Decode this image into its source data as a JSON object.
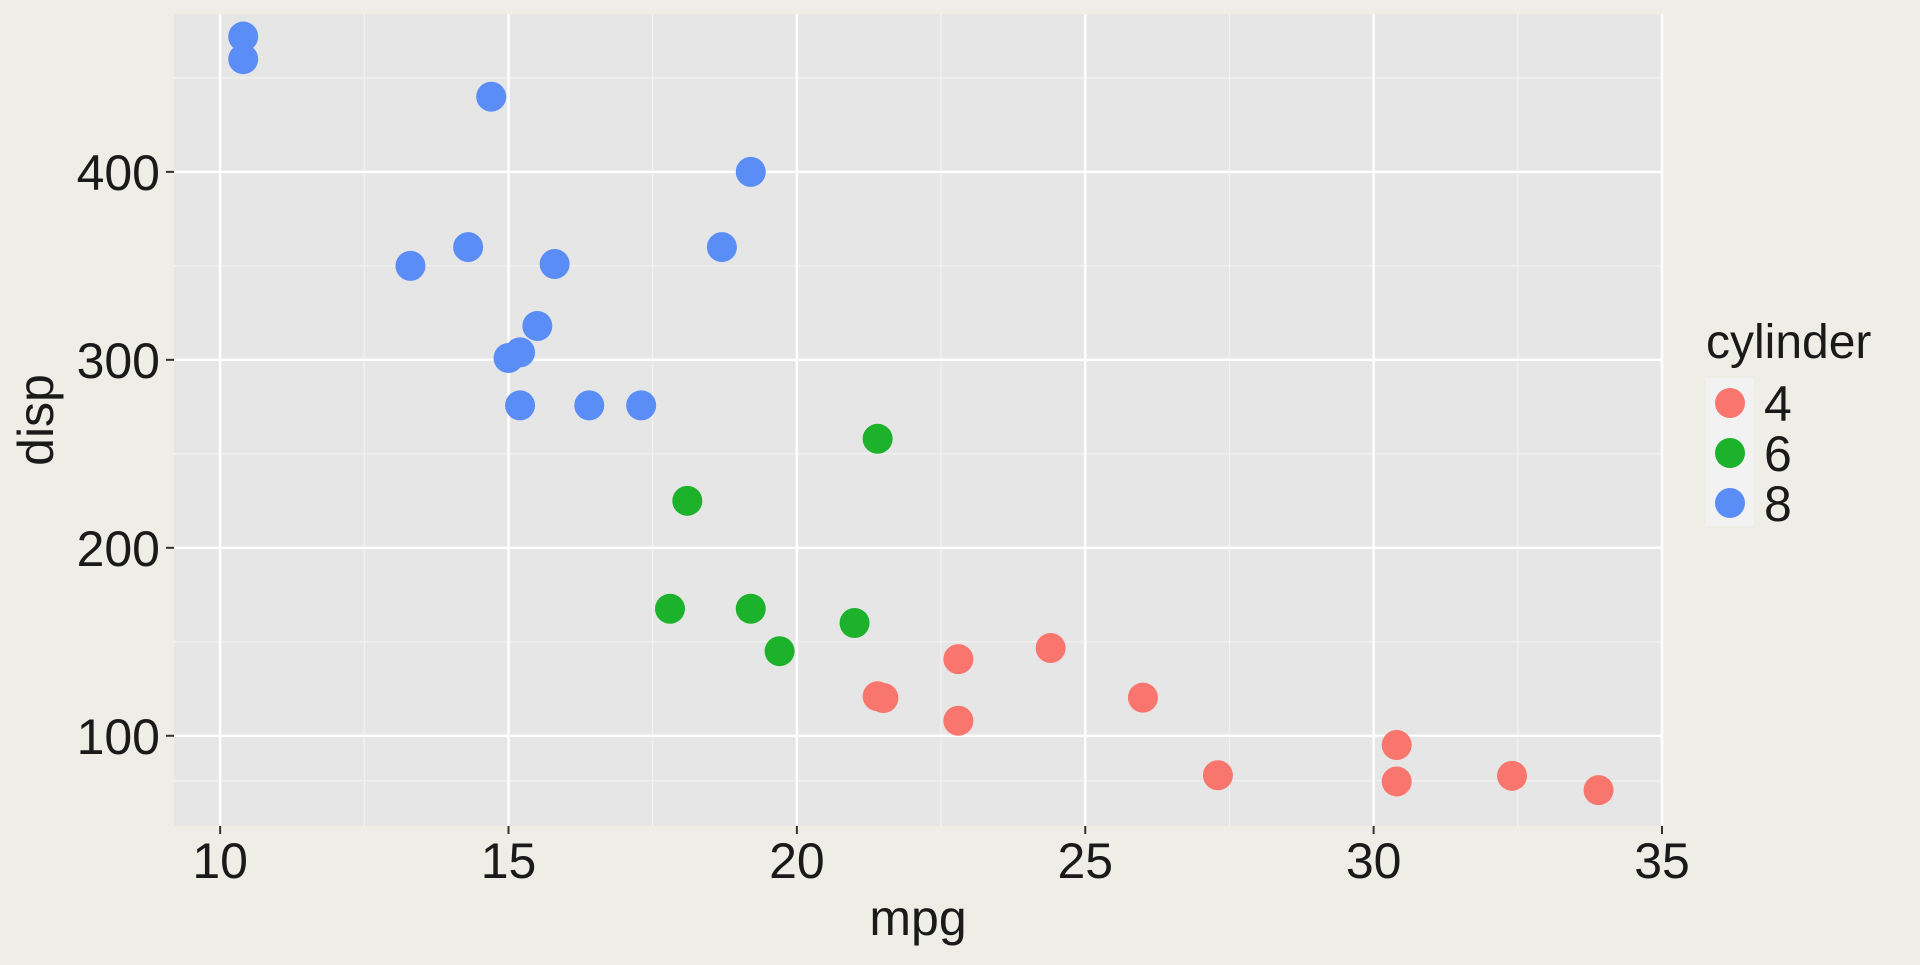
{
  "chart_data": {
    "type": "scatter",
    "title": "",
    "xlabel": "mpg",
    "ylabel": "disp",
    "xlim": [
      9.2,
      35.0
    ],
    "ylim": [
      52,
      484
    ],
    "x_ticks": [
      10,
      15,
      20,
      25,
      30,
      35
    ],
    "y_ticks": [
      100,
      200,
      300,
      400
    ],
    "grid": true,
    "legend": {
      "title": "cylinder",
      "placement": "right",
      "entries": [
        {
          "label": "4",
          "color": "#F8766D"
        },
        {
          "label": "6",
          "color": "#1CB22C"
        },
        {
          "label": "8",
          "color": "#5B8DF7"
        }
      ]
    },
    "series": [
      {
        "name": "4",
        "color": "#F8766D",
        "points": [
          {
            "x": 22.8,
            "y": 108
          },
          {
            "x": 24.4,
            "y": 146.7
          },
          {
            "x": 22.8,
            "y": 140.8
          },
          {
            "x": 32.4,
            "y": 78.7
          },
          {
            "x": 30.4,
            "y": 75.7
          },
          {
            "x": 33.9,
            "y": 71.1
          },
          {
            "x": 21.5,
            "y": 120.1
          },
          {
            "x": 27.3,
            "y": 79
          },
          {
            "x": 26.0,
            "y": 120.3
          },
          {
            "x": 30.4,
            "y": 95.1
          },
          {
            "x": 21.4,
            "y": 121
          }
        ]
      },
      {
        "name": "6",
        "color": "#1CB22C",
        "points": [
          {
            "x": 21.0,
            "y": 160
          },
          {
            "x": 21.4,
            "y": 258
          },
          {
            "x": 18.1,
            "y": 225
          },
          {
            "x": 19.2,
            "y": 167.6
          },
          {
            "x": 17.8,
            "y": 167.6
          },
          {
            "x": 19.7,
            "y": 145
          }
        ]
      },
      {
        "name": "8",
        "color": "#5B8DF7",
        "points": [
          {
            "x": 18.7,
            "y": 360
          },
          {
            "x": 14.3,
            "y": 360
          },
          {
            "x": 16.4,
            "y": 275.8
          },
          {
            "x": 17.3,
            "y": 275.8
          },
          {
            "x": 15.2,
            "y": 275.8
          },
          {
            "x": 10.4,
            "y": 472
          },
          {
            "x": 10.4,
            "y": 460
          },
          {
            "x": 14.7,
            "y": 440
          },
          {
            "x": 15.5,
            "y": 318
          },
          {
            "x": 15.2,
            "y": 304
          },
          {
            "x": 13.3,
            "y": 350
          },
          {
            "x": 19.2,
            "y": 400
          },
          {
            "x": 15.8,
            "y": 351
          },
          {
            "x": 15.0,
            "y": 301
          }
        ]
      }
    ]
  }
}
